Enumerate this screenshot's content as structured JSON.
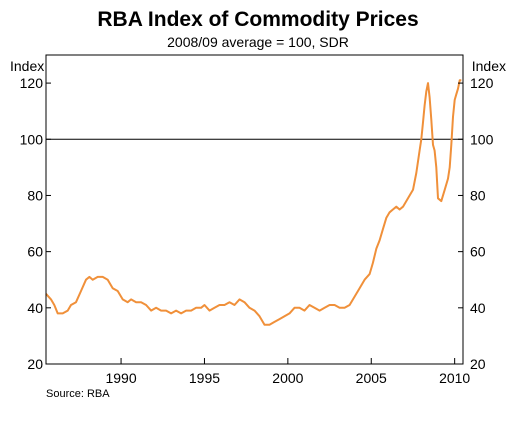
{
  "chart_data": {
    "type": "line",
    "title": "RBA Index of Commodity Prices",
    "subtitle": "2008/09 average = 100, SDR",
    "ylabel_left": "Index",
    "ylabel_right": "Index",
    "source": "Source: RBA",
    "xlim": [
      1985.5,
      2010.5
    ],
    "ylim": [
      20,
      130
    ],
    "x_ticks": [
      1990,
      1995,
      2000,
      2005,
      2010
    ],
    "y_ticks": [
      20,
      40,
      60,
      80,
      100,
      120
    ],
    "reference_line": 100,
    "grid": false,
    "line_color": "#f0903a",
    "series": [
      {
        "x": [
          1985.5,
          1985.8,
          1986.0,
          1986.2,
          1986.5,
          1986.8,
          1987.0,
          1987.3,
          1987.6,
          1987.9,
          1988.1,
          1988.3,
          1988.6,
          1988.9,
          1989.2,
          1989.5,
          1989.8,
          1990.1,
          1990.4,
          1990.6,
          1990.9,
          1991.2,
          1991.5,
          1991.8,
          1992.1,
          1992.4,
          1992.7,
          1993.0,
          1993.3,
          1993.6,
          1993.9,
          1994.2,
          1994.5,
          1994.8,
          1995.0,
          1995.3,
          1995.6,
          1995.9,
          1996.2,
          1996.5,
          1996.8,
          1997.1,
          1997.4,
          1997.7,
          1998.0,
          1998.3,
          1998.6,
          1998.9,
          1999.2,
          1999.5,
          1999.8,
          2000.1,
          2000.4,
          2000.7,
          2001.0,
          2001.3,
          2001.6,
          2001.9,
          2002.2,
          2002.5,
          2002.8,
          2003.1,
          2003.4,
          2003.7,
          2004.0,
          2004.3,
          2004.6,
          2004.9,
          2005.1,
          2005.3,
          2005.5,
          2005.7,
          2005.9,
          2006.1,
          2006.3,
          2006.5,
          2006.7,
          2006.9,
          2007.1,
          2007.3,
          2007.5,
          2007.7,
          2007.9,
          2008.0,
          2008.1,
          2008.2,
          2008.3,
          2008.4,
          2008.5,
          2008.6,
          2008.7,
          2008.8,
          2008.9,
          2009.0,
          2009.2,
          2009.4,
          2009.6,
          2009.7,
          2009.8,
          2009.9,
          2010.0,
          2010.1,
          2010.2,
          2010.3,
          2010.4
        ],
        "values": [
          45,
          43,
          41,
          38,
          38,
          39,
          41,
          42,
          46,
          50,
          51,
          50,
          51,
          51,
          50,
          47,
          46,
          43,
          42,
          43,
          42,
          42,
          41,
          39,
          40,
          39,
          39,
          38,
          39,
          38,
          39,
          39,
          40,
          40,
          41,
          39,
          40,
          41,
          41,
          42,
          41,
          43,
          42,
          40,
          39,
          37,
          34,
          34,
          35,
          36,
          37,
          38,
          40,
          40,
          39,
          41,
          40,
          39,
          40,
          41,
          41,
          40,
          40,
          41,
          44,
          47,
          50,
          52,
          56,
          61,
          64,
          68,
          72,
          74,
          75,
          76,
          75,
          76,
          78,
          80,
          82,
          88,
          96,
          100,
          106,
          112,
          117,
          120,
          115,
          107,
          98,
          96,
          90,
          79,
          78,
          82,
          86,
          90,
          98,
          108,
          114,
          116,
          118,
          121,
          121
        ]
      }
    ]
  }
}
